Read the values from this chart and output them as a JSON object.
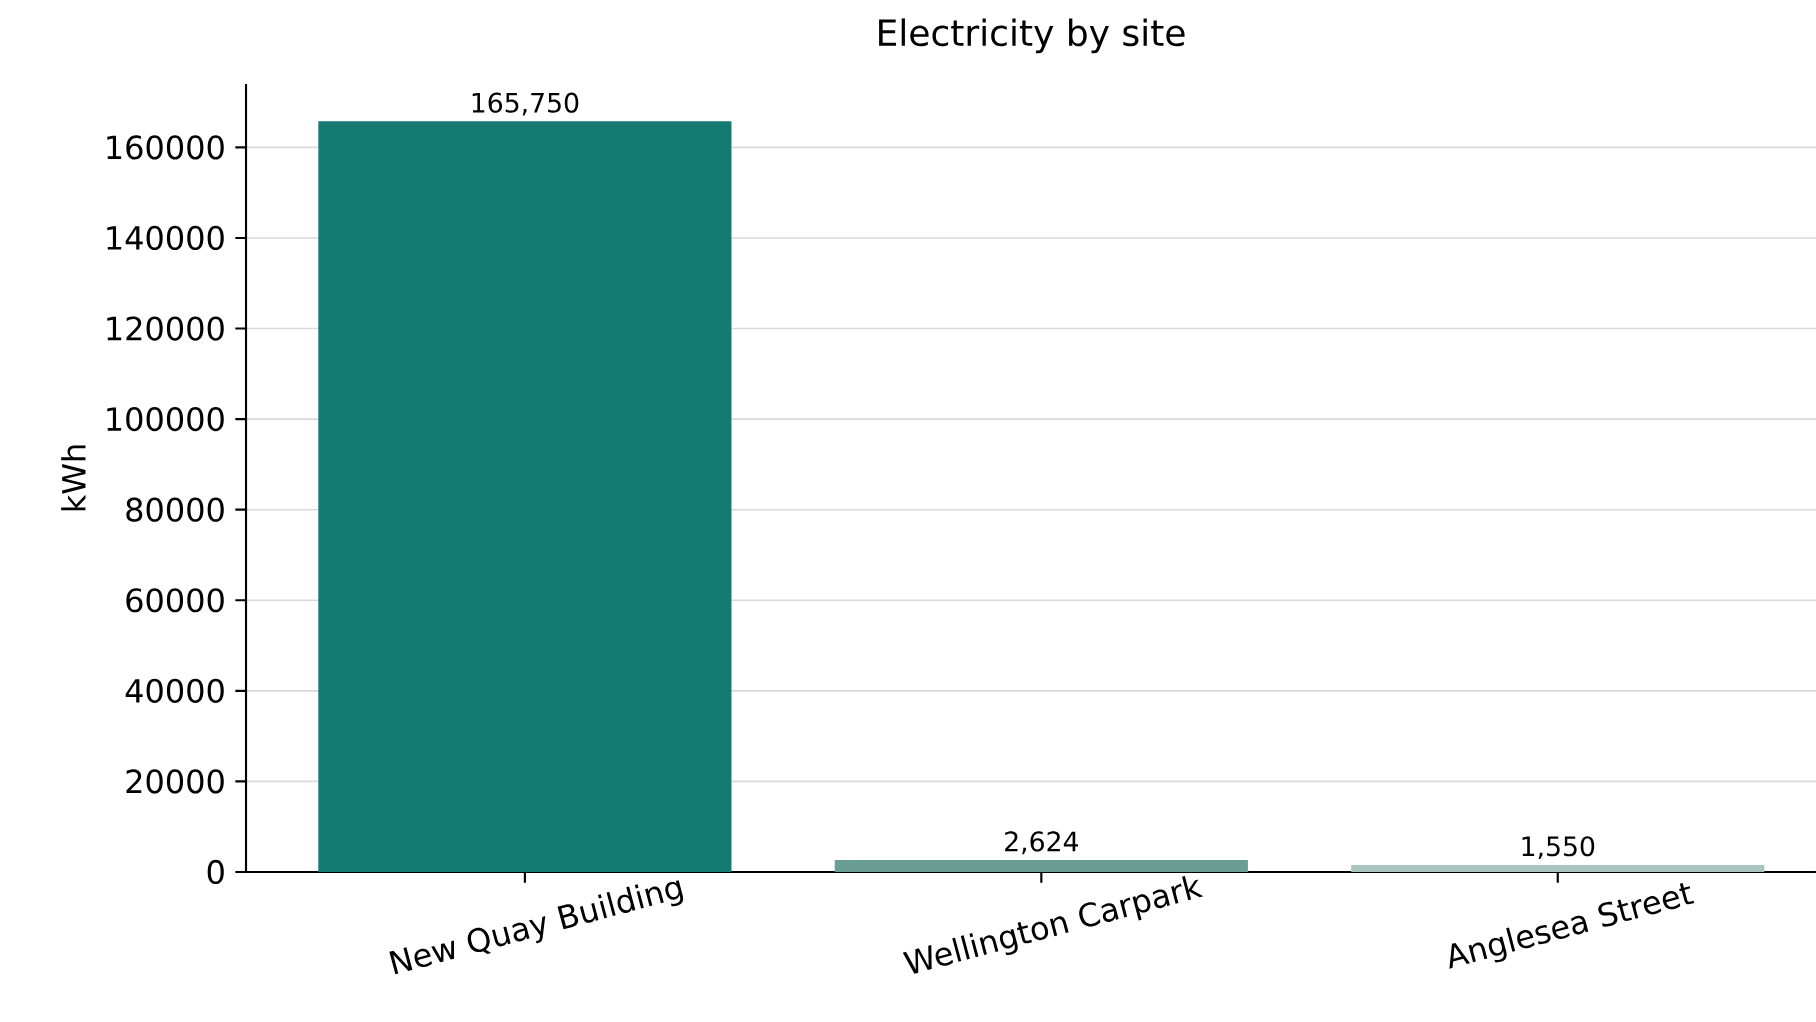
{
  "chart_data": {
    "type": "bar",
    "title": "Electricity by site",
    "ylabel": "kWh",
    "categories": [
      "New Quay Building",
      "Wellington Carpark",
      "Anglesea Street"
    ],
    "values": [
      165750,
      2624,
      1550
    ],
    "colors": [
      "#147a72",
      "#6a9e95",
      "#a9c5c0"
    ],
    "value_labels": [
      "165,750",
      "2,624",
      "1,550"
    ],
    "ylim": [
      0,
      174000
    ],
    "yticks": [
      0,
      20000,
      40000,
      60000,
      80000,
      100000,
      120000,
      140000,
      160000
    ],
    "grid": "y"
  }
}
